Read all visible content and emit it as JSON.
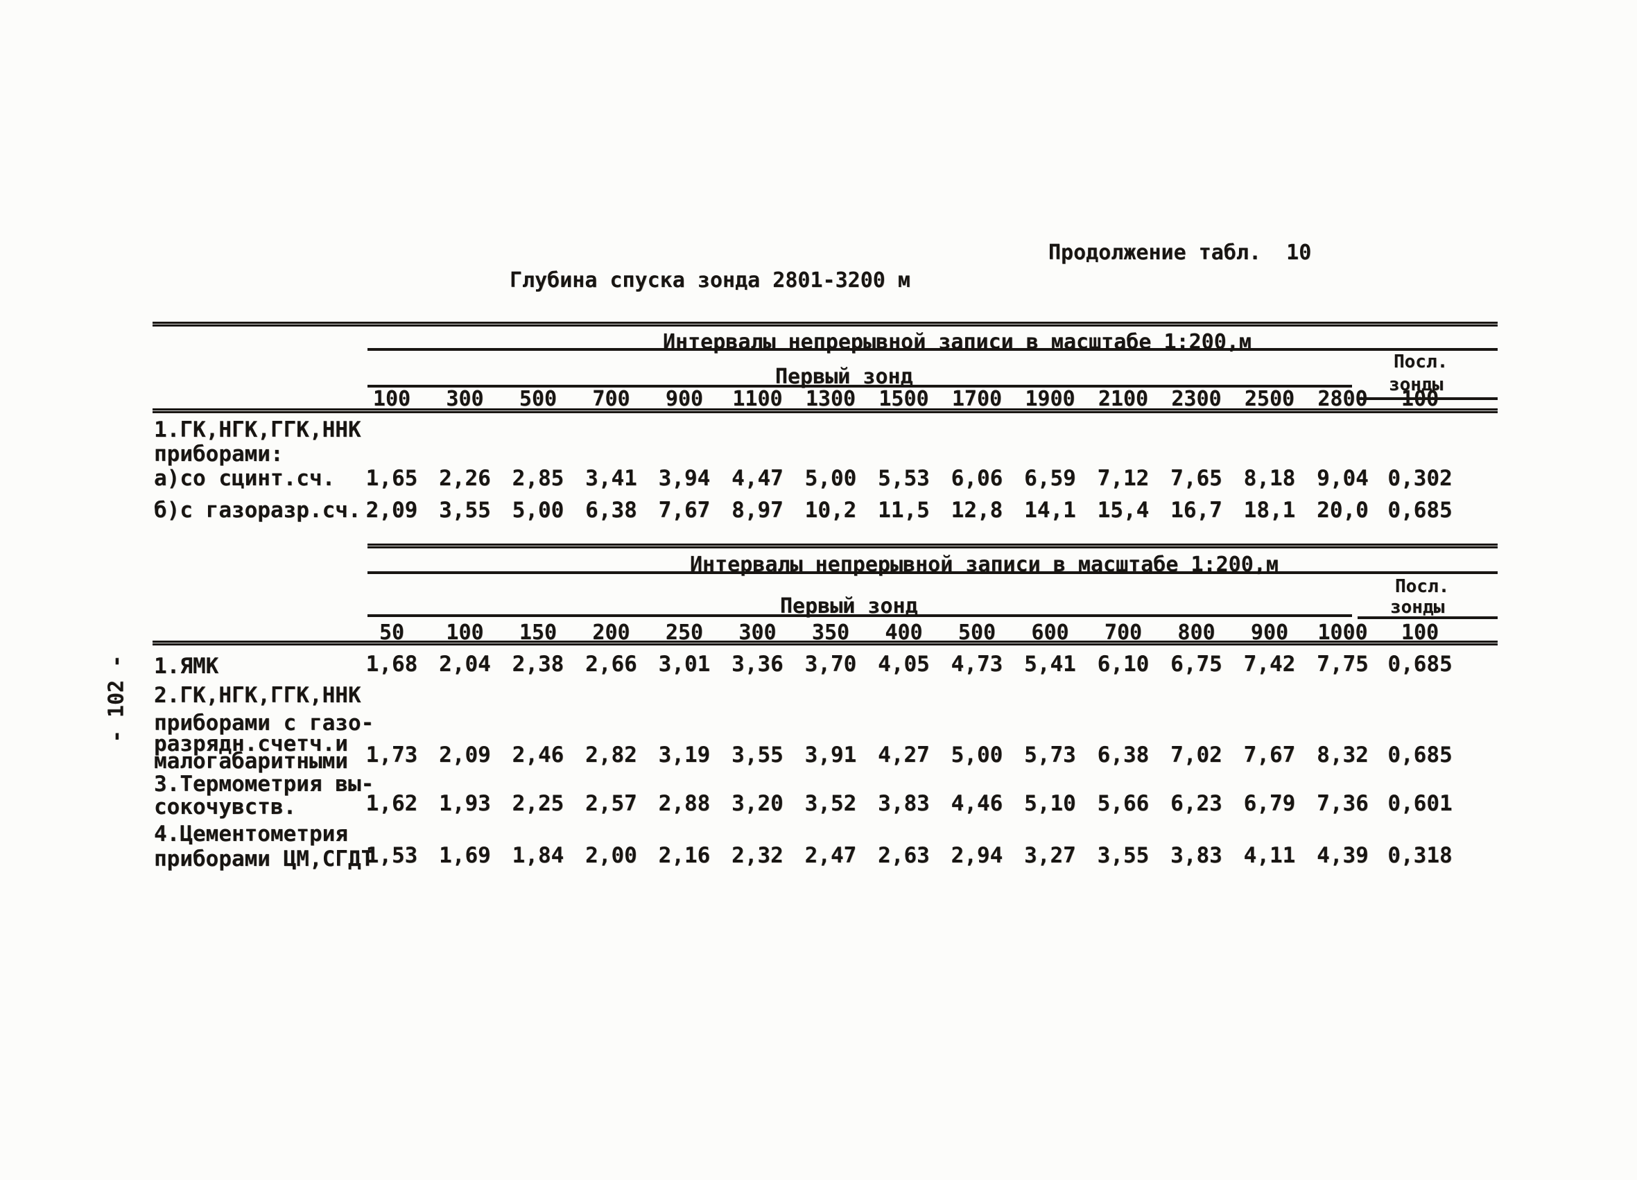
{
  "page": {
    "continuation_label": "Продолжение табл.  10",
    "title": "Глубина спуска зонда 2801-3200 м",
    "page_number": "- 102 -"
  },
  "table1": {
    "scale_header": "Интервалы непрерывной записи в масштабе 1:200,м",
    "first_probe_label": "Первый зонд",
    "last_probe_line1": "Посл.",
    "last_probe_line2": "зонды",
    "columns": [
      "100",
      "300",
      "500",
      "700",
      "900",
      "1100",
      "1300",
      "1500",
      "1700",
      "1900",
      "2100",
      "2300",
      "2500",
      "2800"
    ],
    "last_column": "100",
    "group_lines": [
      "1.ГК,НГК,ГГК,ННК",
      "приборами:"
    ],
    "rows": [
      {
        "label_lines": [
          "а)со сцинт.сч."
        ],
        "values": [
          "1,65",
          "2,26",
          "2,85",
          "3,41",
          "3,94",
          "4,47",
          "5,00",
          "5,53",
          "6,06",
          "6,59",
          "7,12",
          "7,65",
          "8,18",
          "9,04"
        ],
        "last": "0,302"
      },
      {
        "label_lines": [
          "б)с газоразр.сч."
        ],
        "values": [
          "2,09",
          "3,55",
          "5,00",
          "6,38",
          "7,67",
          "8,97",
          "10,2",
          "11,5",
          "12,8",
          "14,1",
          "15,4",
          "16,7",
          "18,1",
          "20,0"
        ],
        "last": "0,685"
      }
    ]
  },
  "table2": {
    "scale_header": "Интервалы непрерывной записи в масштабе 1:200,м",
    "first_probe_label": "Первый зонд",
    "last_probe_line1": "Посл.",
    "last_probe_line2": "зонды",
    "columns": [
      "50",
      "100",
      "150",
      "200",
      "250",
      "300",
      "350",
      "400",
      "500",
      "600",
      "700",
      "800",
      "900",
      "1000"
    ],
    "last_column": "100",
    "rows": [
      {
        "label_lines": [
          "1.ЯМК"
        ],
        "values": [
          "1,68",
          "2,04",
          "2,38",
          "2,66",
          "3,01",
          "3,36",
          "3,70",
          "4,05",
          "4,73",
          "5,41",
          "6,10",
          "6,75",
          "7,42",
          "7,75"
        ],
        "last": "0,685"
      },
      {
        "label_lines": [
          "2.ГК,НГК,ГГК,ННК",
          "приборами с газо-",
          "разрядн.счетч.и",
          "малогабаритными"
        ],
        "values": [
          "1,73",
          "2,09",
          "2,46",
          "2,82",
          "3,19",
          "3,55",
          "3,91",
          "4,27",
          "5,00",
          "5,73",
          "6,38",
          "7,02",
          "7,67",
          "8,32"
        ],
        "last": "0,685"
      },
      {
        "label_lines": [
          "3.Термометрия вы-",
          "сокочувств."
        ],
        "values": [
          "1,62",
          "1,93",
          "2,25",
          "2,57",
          "2,88",
          "3,20",
          "3,52",
          "3,83",
          "4,46",
          "5,10",
          "5,66",
          "6,23",
          "6,79",
          "7,36"
        ],
        "last": "0,601"
      },
      {
        "label_lines": [
          "4.Цементометрия",
          "приборами ЦМ,СГДТ"
        ],
        "values": [
          "1,53",
          "1,69",
          "1,84",
          "2,00",
          "2,16",
          "2,32",
          "2,47",
          "2,63",
          "2,94",
          "3,27",
          "3,55",
          "3,83",
          "4,11",
          "4,39"
        ],
        "last": "0,318"
      }
    ]
  }
}
